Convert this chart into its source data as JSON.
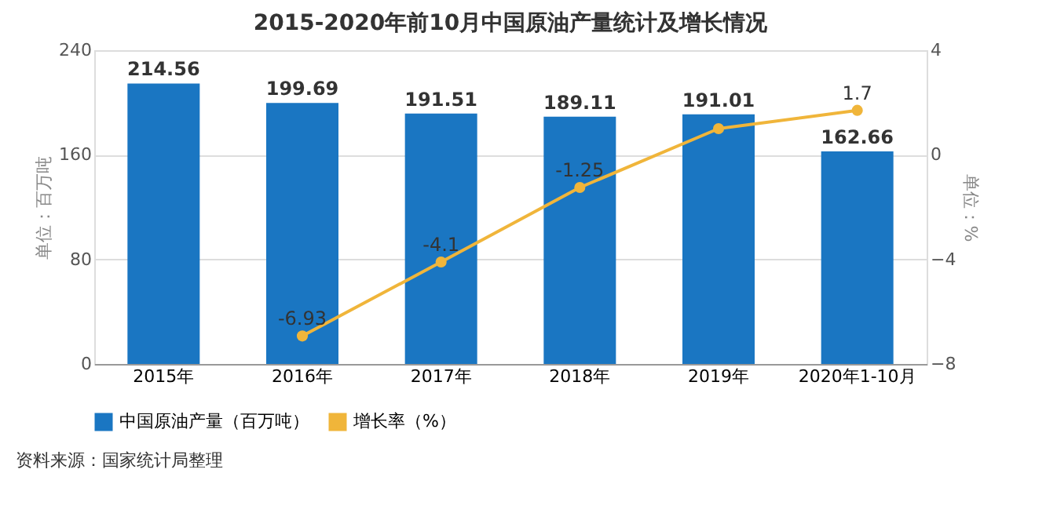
{
  "chart_data": {
    "type": "bar",
    "title": "2015-2020年前10月中国原油产量统计及增长情况",
    "categories": [
      "2015年",
      "2016年",
      "2017年",
      "2018年",
      "2019年",
      "2020年1-10月"
    ],
    "series": [
      {
        "name": "中国原油产量（百万吨）",
        "color": "#1a76c2",
        "values": [
          214.56,
          199.69,
          191.51,
          189.11,
          191.01,
          162.66
        ],
        "value_labels": [
          "214.56",
          "199.69",
          "191.51",
          "189.11",
          "191.01",
          "162.66"
        ]
      },
      {
        "name": "增长率（%）",
        "color": "#f0b53a",
        "type": "line",
        "axis": "y2",
        "marker": "circle",
        "values": [
          null,
          -6.93,
          -4.1,
          -1.25,
          1.0,
          1.7
        ],
        "value_labels": [
          null,
          "-6.93",
          "-4.1",
          "-1.25",
          null,
          "1.7"
        ]
      }
    ],
    "ylabel": "单位：百万吨",
    "y2label": "单位：%",
    "ylim": [
      0,
      240
    ],
    "yticks": [
      0,
      80,
      160,
      240
    ],
    "y2lim": [
      -8,
      4
    ],
    "y2ticks": [
      -8,
      -4,
      0,
      4
    ],
    "grid": "y",
    "legend": "bottom",
    "annotations": [
      "资料来源：国家统计局整理"
    ]
  }
}
